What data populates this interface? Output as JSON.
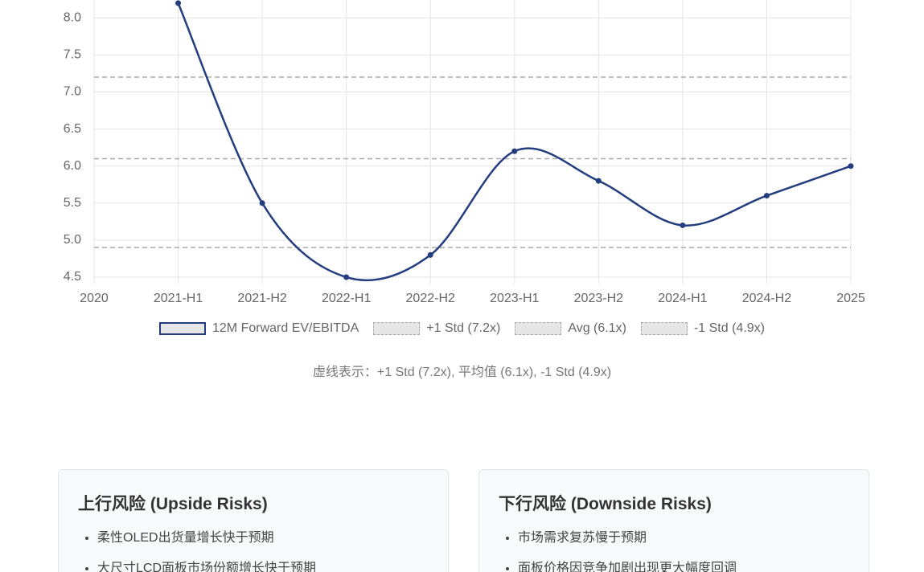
{
  "chart_data": {
    "type": "line",
    "categories": [
      "2020",
      "2021-H1",
      "2021-H2",
      "2022-H1",
      "2022-H2",
      "2023-H1",
      "2023-H2",
      "2024-H1",
      "2024-H2",
      "2025"
    ],
    "series": [
      {
        "name": "12M Forward EV/EBITDA",
        "color": "#233d7f",
        "values": [
          null,
          8.2,
          5.5,
          4.5,
          4.8,
          6.2,
          5.8,
          5.2,
          5.6,
          6.0
        ]
      }
    ],
    "reference_lines": [
      {
        "name": "+1 Std (7.2x)",
        "value": 7.2,
        "color": "#aaaaaa"
      },
      {
        "name": "Avg (6.1x)",
        "value": 6.1,
        "color": "#aaaaaa"
      },
      {
        "name": "-1 Std (4.9x)",
        "value": 4.9,
        "color": "#aaaaaa"
      }
    ],
    "ylim": [
      4.5,
      8.5
    ],
    "yticks": [
      4.5,
      {
        "value": 5,
        "label": "5.0"
      },
      5.5,
      {
        "value": 6,
        "label": "6.0"
      },
      6.5,
      {
        "value": 7,
        "label": "7.0"
      },
      7.5,
      {
        "value": 8,
        "label": "8.0"
      }
    ],
    "grid": true,
    "note": "虚线表示：+1 Std (7.2x), 平均值 (6.1x), -1 Std (4.9x)"
  },
  "risks": [
    {
      "title": "上行风险 (Upside Risks)",
      "items": [
        "柔性OLED出货量增长快于预期",
        "大尺寸LCD面板市场份额增长快于预期"
      ]
    },
    {
      "title": "下行风险 (Downside Risks)",
      "items": [
        "市场需求复苏慢于预期",
        "面板价格因竞争加剧出现更大幅度回调"
      ]
    }
  ]
}
